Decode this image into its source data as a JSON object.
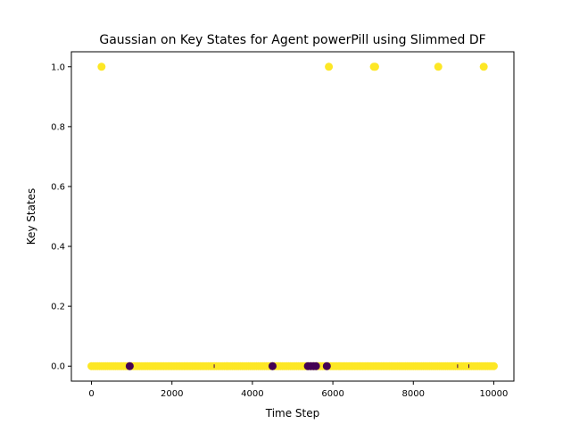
{
  "chart_data": {
    "type": "scatter",
    "title": "Gaussian on Key States for Agent powerPill using Slimmed DF",
    "xlabel": "Time Step",
    "ylabel": "Key States",
    "xlim": [
      -500,
      10500
    ],
    "ylim": [
      -0.05,
      1.05
    ],
    "x_ticks": [
      0,
      2000,
      4000,
      6000,
      8000,
      10000
    ],
    "x_tick_labels": [
      "0",
      "2000",
      "4000",
      "6000",
      "8000",
      "10000"
    ],
    "y_ticks": [
      0.0,
      0.2,
      0.4,
      0.6,
      0.8,
      1.0
    ],
    "y_tick_labels": [
      "0.0",
      "0.2",
      "0.4",
      "0.6",
      "0.8",
      "1.0"
    ],
    "grid": false,
    "legend": "none",
    "colors": {
      "yellow": "#fde725",
      "purple": "#440154",
      "axis": "#000000",
      "background": "#ffffff"
    },
    "series": [
      {
        "color": "yellow",
        "baseline_band": {
          "x_start": 0,
          "x_end": 10000,
          "y": 0
        },
        "points": [
          {
            "x": 250,
            "y": 1
          },
          {
            "x": 5900,
            "y": 1
          },
          {
            "x": 7020,
            "y": 1
          },
          {
            "x": 7050,
            "y": 1
          },
          {
            "x": 8620,
            "y": 1
          },
          {
            "x": 9750,
            "y": 1
          }
        ]
      },
      {
        "color": "purple",
        "points": [
          {
            "x": 950,
            "y": 0
          },
          {
            "x": 4500,
            "y": 0
          },
          {
            "x": 5380,
            "y": 0
          },
          {
            "x": 5450,
            "y": 0
          },
          {
            "x": 5520,
            "y": 0
          },
          {
            "x": 5580,
            "y": 0
          },
          {
            "x": 5850,
            "y": 0
          }
        ]
      }
    ],
    "minor_marks": [
      {
        "x": 3050,
        "y": 0
      },
      {
        "x": 9100,
        "y": 0
      },
      {
        "x": 9380,
        "y": 0
      }
    ]
  }
}
